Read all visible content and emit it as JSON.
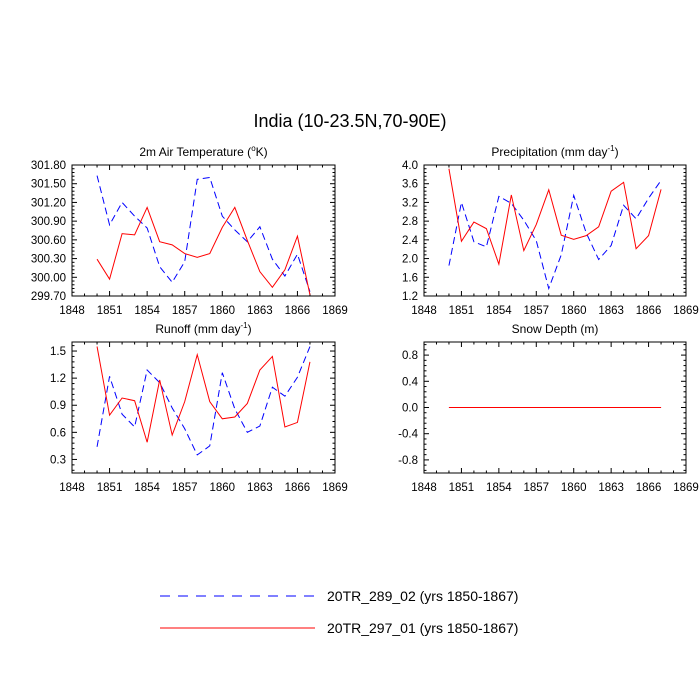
{
  "figure": {
    "title": "India (10-23.5N,70-90E)"
  },
  "series_styles": {
    "a": {
      "color": "#0000ff",
      "dash": true
    },
    "b": {
      "color": "#ff0000",
      "dash": false
    }
  },
  "legend": [
    {
      "key": "a",
      "label": "20TR_289_02 (yrs 1850-1867)"
    },
    {
      "key": "b",
      "label": "20TR_297_01 (yrs 1850-1867)"
    }
  ],
  "chart_data": [
    {
      "type": "line",
      "id": "temp",
      "title": "2m Air Temperature (",
      "title_sup": "o",
      "title_suffix": "K)",
      "xlim": [
        1848,
        1869
      ],
      "xticks": [
        1848,
        1851,
        1854,
        1857,
        1860,
        1863,
        1866,
        1869
      ],
      "ylim": [
        299.7,
        301.8
      ],
      "yticks": [
        "299.70",
        "300.00",
        "300.30",
        "300.60",
        "300.90",
        "301.20",
        "301.50",
        "301.80"
      ],
      "x": [
        1850,
        1851,
        1852,
        1853,
        1854,
        1855,
        1856,
        1857,
        1858,
        1859,
        1860,
        1861,
        1862,
        1863,
        1864,
        1865,
        1866,
        1867
      ],
      "series": [
        {
          "key": "a",
          "name": "20TR_289_02",
          "values": [
            301.63,
            300.84,
            301.2,
            300.98,
            300.79,
            300.17,
            299.92,
            300.25,
            301.57,
            301.6,
            300.98,
            300.76,
            300.57,
            300.81,
            300.29,
            300.02,
            300.37,
            299.77
          ]
        },
        {
          "key": "b",
          "name": "20TR_297_01",
          "values": [
            300.29,
            299.97,
            300.7,
            300.68,
            301.12,
            300.57,
            300.52,
            300.38,
            300.32,
            300.38,
            300.8,
            301.12,
            300.59,
            300.09,
            299.84,
            300.12,
            300.66,
            299.72
          ]
        }
      ]
    },
    {
      "type": "line",
      "id": "precip",
      "title": "Precipitation (mm day",
      "title_sup": "-1",
      "title_suffix": ")",
      "xlim": [
        1848,
        1869
      ],
      "xticks": [
        1848,
        1851,
        1854,
        1857,
        1860,
        1863,
        1866,
        1869
      ],
      "ylim": [
        1.2,
        4.0
      ],
      "yticks": [
        "1.2",
        "1.6",
        "2.0",
        "2.4",
        "2.8",
        "3.2",
        "3.6",
        "4.0"
      ],
      "x": [
        1850,
        1851,
        1852,
        1853,
        1854,
        1855,
        1856,
        1857,
        1858,
        1859,
        1860,
        1861,
        1862,
        1863,
        1864,
        1865,
        1866,
        1867
      ],
      "series": [
        {
          "key": "a",
          "name": "20TR_289_02",
          "values": [
            1.85,
            3.2,
            2.36,
            2.25,
            3.33,
            3.18,
            2.82,
            2.38,
            1.36,
            2.08,
            3.35,
            2.55,
            1.98,
            2.28,
            3.14,
            2.85,
            3.29,
            3.67
          ]
        },
        {
          "key": "b",
          "name": "20TR_297_01",
          "values": [
            3.92,
            2.37,
            2.78,
            2.64,
            1.88,
            3.36,
            2.17,
            2.73,
            3.47,
            2.5,
            2.41,
            2.49,
            2.68,
            3.44,
            3.63,
            2.21,
            2.49,
            3.48
          ]
        }
      ]
    },
    {
      "type": "line",
      "id": "runoff",
      "title": "Runoff (mm day",
      "title_sup": "-1",
      "title_suffix": ")",
      "xlim": [
        1848,
        1869
      ],
      "xticks": [
        1848,
        1851,
        1854,
        1857,
        1860,
        1863,
        1866,
        1869
      ],
      "ylim": [
        0.15,
        1.6
      ],
      "yticks": [
        "0.3",
        "0.6",
        "0.9",
        "1.2",
        "1.5"
      ],
      "x": [
        1850,
        1851,
        1852,
        1853,
        1854,
        1855,
        1856,
        1857,
        1858,
        1859,
        1860,
        1861,
        1862,
        1863,
        1864,
        1865,
        1866,
        1867
      ],
      "series": [
        {
          "key": "a",
          "name": "20TR_289_02",
          "values": [
            0.44,
            1.22,
            0.8,
            0.66,
            1.29,
            1.15,
            0.87,
            0.64,
            0.35,
            0.45,
            1.26,
            0.86,
            0.6,
            0.67,
            1.1,
            1.0,
            1.21,
            1.55
          ]
        },
        {
          "key": "b",
          "name": "20TR_297_01",
          "values": [
            1.55,
            0.79,
            0.98,
            0.95,
            0.49,
            1.18,
            0.57,
            0.94,
            1.46,
            0.94,
            0.75,
            0.77,
            0.92,
            1.29,
            1.44,
            0.66,
            0.71,
            1.38
          ]
        }
      ]
    },
    {
      "type": "line",
      "id": "snow",
      "title": "Snow Depth (m)",
      "title_sup": "",
      "title_suffix": "",
      "xlim": [
        1848,
        1869
      ],
      "xticks": [
        1848,
        1851,
        1854,
        1857,
        1860,
        1863,
        1866,
        1869
      ],
      "ylim": [
        -1.0,
        1.0
      ],
      "yticks": [
        "-0.8",
        "-0.4",
        "0.0",
        "0.4",
        "0.8"
      ],
      "x": [
        1850,
        1851,
        1852,
        1853,
        1854,
        1855,
        1856,
        1857,
        1858,
        1859,
        1860,
        1861,
        1862,
        1863,
        1864,
        1865,
        1866,
        1867
      ],
      "series": [
        {
          "key": "a",
          "name": "20TR_289_02",
          "values": [
            0,
            0,
            0,
            0,
            0,
            0,
            0,
            0,
            0,
            0,
            0,
            0,
            0,
            0,
            0,
            0,
            0,
            0
          ]
        },
        {
          "key": "b",
          "name": "20TR_297_01",
          "values": [
            0,
            0,
            0,
            0,
            0,
            0,
            0,
            0,
            0,
            0,
            0,
            0,
            0,
            0,
            0,
            0,
            0,
            0
          ]
        }
      ]
    }
  ]
}
